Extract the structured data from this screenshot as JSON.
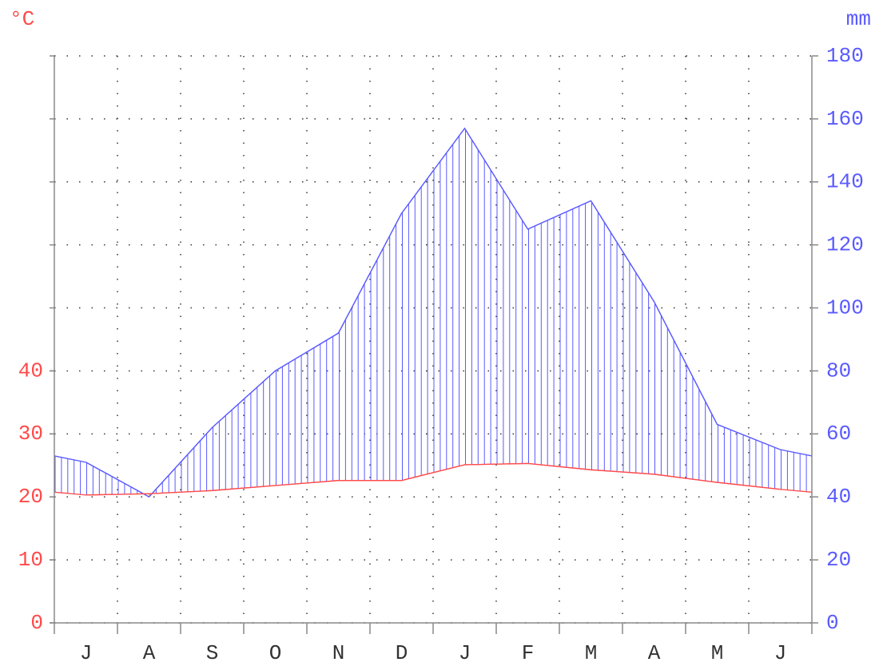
{
  "chart_data": {
    "type": "climate",
    "categories": [
      "J",
      "A",
      "S",
      "O",
      "N",
      "D",
      "J",
      "F",
      "M",
      "A",
      "M",
      "J"
    ],
    "series": [
      {
        "name": "°C",
        "color": "#ff4a4a",
        "values": [
          20.3,
          20.5,
          21,
          21.8,
          22.6,
          22.6,
          25.1,
          25.3,
          24.3,
          23.6,
          22.3,
          21.2
        ]
      },
      {
        "name": "mm",
        "color": "#5a5aff",
        "axis": "y2",
        "values": [
          51,
          40,
          62,
          80,
          92,
          130,
          157,
          125,
          134,
          102,
          63,
          55
        ]
      }
    ],
    "ylim": [
      0,
      90
    ],
    "yticks": [
      0,
      10,
      20,
      30,
      40
    ],
    "y2lim": [
      0,
      180
    ],
    "y2ticks": [
      0,
      20,
      40,
      60,
      80,
      100,
      120,
      140,
      160,
      180
    ],
    "grid": true
  }
}
